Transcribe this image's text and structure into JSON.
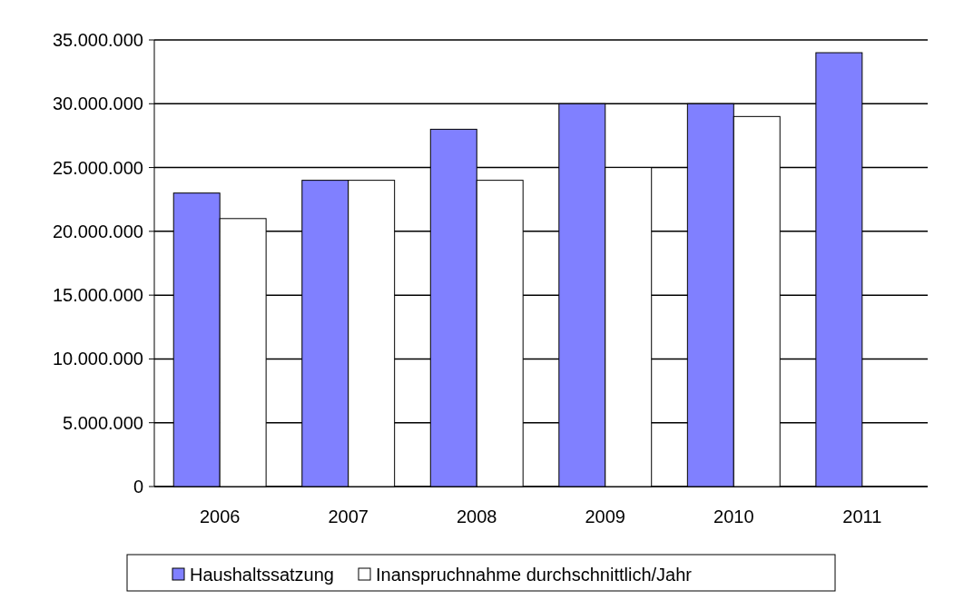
{
  "chart_data": {
    "type": "bar",
    "categories": [
      "2006",
      "2007",
      "2008",
      "2009",
      "2010",
      "2011"
    ],
    "series": [
      {
        "name": "Haushaltssatzung",
        "color": "#8080ff",
        "values": [
          23000000,
          24000000,
          28000000,
          30000000,
          30000000,
          34000000
        ]
      },
      {
        "name": "Inanspruchnahme durchschnittlich/Jahr",
        "color": "#ffffff",
        "values": [
          21000000,
          24000000,
          24000000,
          25000000,
          29000000,
          null
        ]
      }
    ],
    "ylim": [
      0,
      35000000
    ],
    "yticks": [
      {
        "value": 0,
        "label": "0"
      },
      {
        "value": 5000000,
        "label": "5.000.000"
      },
      {
        "value": 10000000,
        "label": "10.000.000"
      },
      {
        "value": 15000000,
        "label": "15.000.000"
      },
      {
        "value": 20000000,
        "label": "20.000.000"
      },
      {
        "value": 25000000,
        "label": "25.000.000"
      },
      {
        "value": 30000000,
        "label": "30.000.000"
      },
      {
        "value": 35000000,
        "label": "35.000.000"
      }
    ],
    "grid": "y",
    "legend": "bottom"
  }
}
